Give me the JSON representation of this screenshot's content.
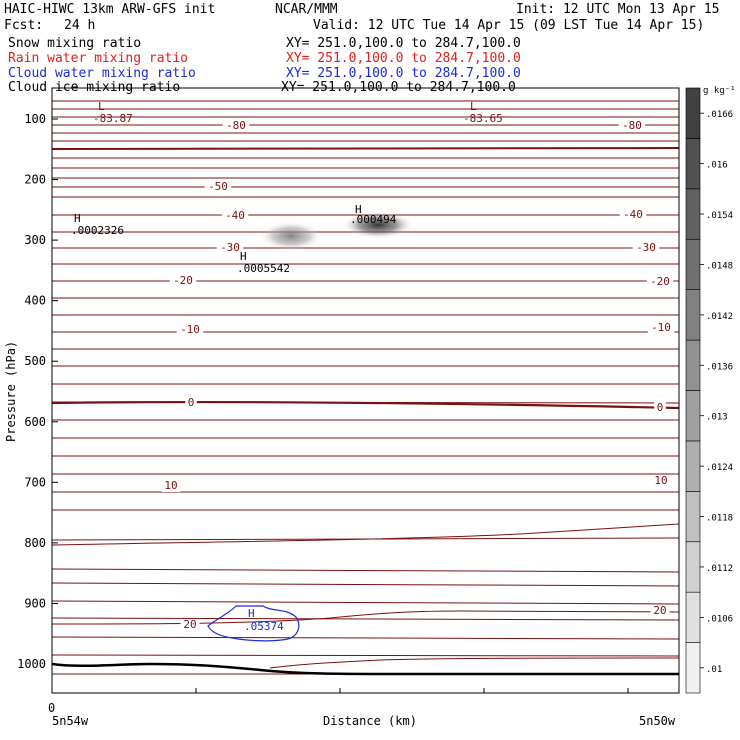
{
  "header": {
    "model": "HAIC-HIWC 13km ARW-GFS init",
    "org": "NCAR/MMM",
    "init": "Init: 12 UTC Mon 13 Apr 15",
    "fcst_label": "Fcst:",
    "fcst_value": "24 h",
    "valid": "Valid: 12 UTC Tue 14 Apr 15 (09 LST Tue 14 Apr 15)",
    "fields": [
      {
        "name": "Snow mixing ratio",
        "xy": "XY= 251.0,100.0 to 284.7,100.0",
        "color": "#000000"
      },
      {
        "name": "Rain water mixing ratio",
        "xy": "XY= 251.0,100.0 to 284.7,100.0",
        "color": "#e0201c"
      },
      {
        "name": "Cloud water mixing ratio",
        "xy": "XY= 251.0,100.0 to 284.7,100.0",
        "color": "#1c2bd4"
      },
      {
        "name": "Cloud ice mixing ratio",
        "xy": "XY= 251.0,100.0 to 284.7,100.0",
        "color": "#000000"
      }
    ]
  },
  "chart_data": {
    "type": "contour",
    "xlabel": "Distance (km)",
    "ylabel": "Pressure (hPa)",
    "x_start_label": "5n54w",
    "x_end_label": "5n50w",
    "x_zero_label": "0",
    "yticks": [
      100,
      200,
      300,
      400,
      500,
      600,
      700,
      800,
      900,
      1000
    ],
    "ylim": [
      50,
      1050
    ],
    "colorbar": {
      "unit": "g kg⁻¹",
      "labels": [
        ".01",
        ".0106",
        ".0112",
        ".0118",
        ".0124",
        ".013",
        ".0136",
        ".0142",
        ".0148",
        ".0154",
        ".016",
        ".0166"
      ]
    },
    "temperature_contours": [
      {
        "value": -80,
        "label": "-80"
      },
      {
        "value": -50,
        "label": "-50"
      },
      {
        "value": -40,
        "label": "-40"
      },
      {
        "value": -30,
        "label": "-30"
      },
      {
        "value": -20,
        "label": "-20"
      },
      {
        "value": -10,
        "label": "-10"
      },
      {
        "value": 0,
        "label": "0"
      },
      {
        "value": 10,
        "label": "10"
      },
      {
        "value": 20,
        "label": "20"
      }
    ],
    "extrema": [
      {
        "type": "L",
        "value": "-83.87",
        "color": "#7a1010"
      },
      {
        "type": "L",
        "value": "-83.65",
        "color": "#7a1010"
      },
      {
        "type": "H",
        "value": ".0002326",
        "color": "#000000"
      },
      {
        "type": "H",
        "value": ".000494",
        "color": "#000000"
      },
      {
        "type": "H",
        "value": ".0005542",
        "color": "#000000"
      },
      {
        "type": "H",
        "value": ".05374",
        "color": "#1c2bd4"
      }
    ],
    "contour_color": "#7a1010"
  }
}
